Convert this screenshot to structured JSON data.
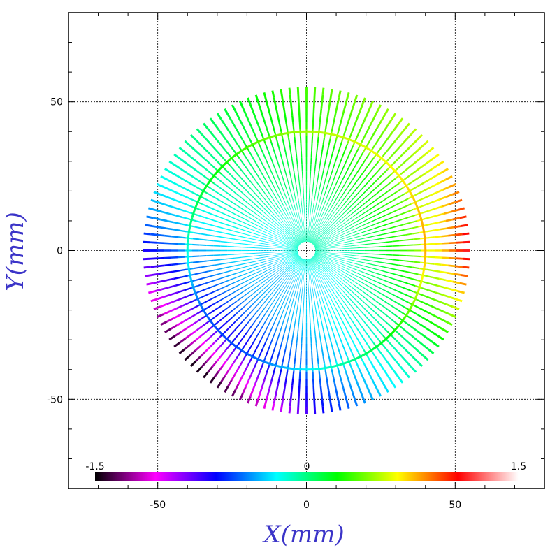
{
  "chart_data": {
    "type": "scatter",
    "description_free": true,
    "xlabel": "X(mm)",
    "ylabel": "Y(mm)",
    "xlim": [
      -80,
      80
    ],
    "ylim": [
      -80,
      80
    ],
    "x_ticks": [
      -50,
      0,
      50
    ],
    "y_ticks": [
      -50,
      0,
      50
    ],
    "x_tick_labels": [
      "-50",
      "0",
      "50"
    ],
    "y_tick_labels": [
      "-50",
      "0",
      "50"
    ],
    "grid": true,
    "pattern": {
      "spoke_count": 120,
      "max_radius": 55,
      "ring_radius": 40
    },
    "colorbar": {
      "min": -1.5,
      "max": 1.5,
      "labels": [
        "-1.5",
        "0",
        "1.5"
      ],
      "placement": "bottom-inside",
      "stops": [
        "#000000",
        "#ff00ff",
        "#0000ff",
        "#00ffff",
        "#00ff00",
        "#ffff00",
        "#ff0000",
        "#ffffff"
      ]
    },
    "colors": {
      "axis_title": "#3b34c8",
      "grid": "#000000",
      "frame": "#000000"
    }
  }
}
